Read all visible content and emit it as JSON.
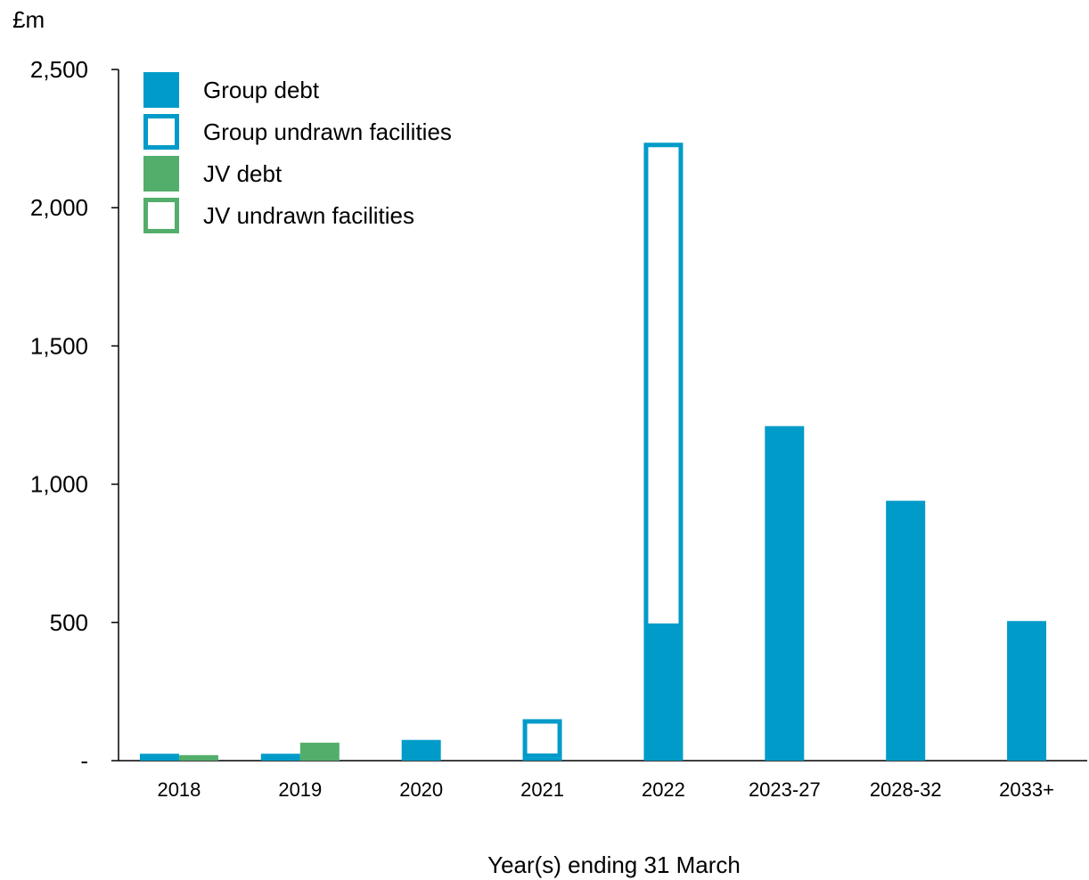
{
  "chart_data": {
    "type": "bar",
    "unit_label": "£m",
    "xlabel": "Year(s) ending 31 March",
    "ylim": [
      0,
      2500
    ],
    "yticks": [
      {
        "value": 0,
        "label": "-"
      },
      {
        "value": 500,
        "label": "500"
      },
      {
        "value": 1000,
        "label": "1,000"
      },
      {
        "value": 1500,
        "label": "1,500"
      },
      {
        "value": 2000,
        "label": "2,000"
      },
      {
        "value": 2500,
        "label": "2,500"
      }
    ],
    "categories": [
      "2018",
      "2019",
      "2020",
      "2021",
      "2022",
      "2023-27",
      "2028-32",
      "2033+"
    ],
    "series": [
      {
        "name": "Group debt",
        "color": "#009bc9",
        "style": "filled",
        "group": "group",
        "values": [
          25,
          25,
          75,
          10,
          480,
          1210,
          940,
          505
        ]
      },
      {
        "name": "Group undrawn facilities",
        "color": "#009bc9",
        "style": "outline",
        "group": "group",
        "values": [
          0,
          0,
          0,
          140,
          1755,
          0,
          0,
          0
        ]
      },
      {
        "name": "JV debt",
        "color": "#52ae6a",
        "style": "filled",
        "group": "jv",
        "values": [
          20,
          65,
          0,
          0,
          0,
          0,
          0,
          0
        ]
      },
      {
        "name": "JV undrawn facilities",
        "color": "#52ae6a",
        "style": "outline",
        "group": "jv",
        "values": [
          0,
          0,
          0,
          0,
          0,
          0,
          0,
          0
        ]
      }
    ],
    "legend_position": "top-left",
    "grid": false
  }
}
